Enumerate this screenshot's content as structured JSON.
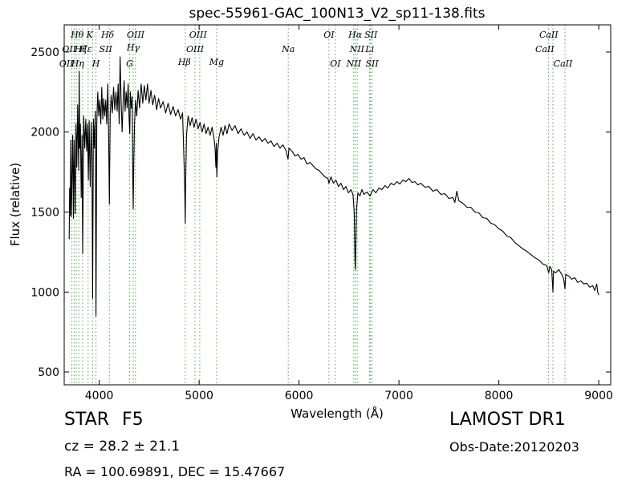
{
  "chart_data": {
    "type": "line",
    "title": "spec-55961-GAC_100N13_V2_sp11-138.fits",
    "xlabel": "Wavelength (Å)",
    "ylabel": "Flux (relative)",
    "xlim": [
      3650,
      9120
    ],
    "ylim": [
      420,
      2670
    ],
    "xticks": [
      4000,
      5000,
      6000,
      7000,
      8000,
      9000
    ],
    "yticks": [
      500,
      1000,
      1500,
      2000,
      2500
    ],
    "grid": false,
    "series": [
      {
        "color": "#000000",
        "points": [
          [
            3700,
            1330
          ],
          [
            3705,
            1650
          ],
          [
            3710,
            1480
          ],
          [
            3716,
            1950
          ],
          [
            3722,
            1470
          ],
          [
            3728,
            1700
          ],
          [
            3735,
            1980
          ],
          [
            3742,
            1460
          ],
          [
            3750,
            1950
          ],
          [
            3760,
            1490
          ],
          [
            3768,
            2050
          ],
          [
            3776,
            1780
          ],
          [
            3785,
            2170
          ],
          [
            3795,
            1760
          ],
          [
            3800,
            2380
          ],
          [
            3806,
            1900
          ],
          [
            3812,
            2050
          ],
          [
            3820,
            1590
          ],
          [
            3828,
            1980
          ],
          [
            3835,
            1240
          ],
          [
            3845,
            2100
          ],
          [
            3856,
            1900
          ],
          [
            3866,
            2080
          ],
          [
            3875,
            1880
          ],
          [
            3884,
            2050
          ],
          [
            3892,
            1700
          ],
          [
            3900,
            2070
          ],
          [
            3910,
            1660
          ],
          [
            3920,
            2060
          ],
          [
            3928,
            1850
          ],
          [
            3934,
            960
          ],
          [
            3942,
            2080
          ],
          [
            3952,
            1900
          ],
          [
            3961,
            2130
          ],
          [
            3968,
            850
          ],
          [
            3976,
            2050
          ],
          [
            3986,
            2250
          ],
          [
            3996,
            2100
          ],
          [
            4006,
            2200
          ],
          [
            4016,
            2050
          ],
          [
            4026,
            2280
          ],
          [
            4036,
            2080
          ],
          [
            4046,
            2210
          ],
          [
            4056,
            2100
          ],
          [
            4066,
            2200
          ],
          [
            4076,
            2050
          ],
          [
            4086,
            2300
          ],
          [
            4094,
            2000
          ],
          [
            4102,
            1550
          ],
          [
            4110,
            2100
          ],
          [
            4120,
            2230
          ],
          [
            4132,
            2120
          ],
          [
            4144,
            2280
          ],
          [
            4156,
            2140
          ],
          [
            4168,
            2250
          ],
          [
            4180,
            2130
          ],
          [
            4190,
            2300
          ],
          [
            4200,
            2050
          ],
          [
            4210,
            2470
          ],
          [
            4220,
            2180
          ],
          [
            4230,
            2000
          ],
          [
            4240,
            2200
          ],
          [
            4250,
            2320
          ],
          [
            4260,
            2130
          ],
          [
            4270,
            2250
          ],
          [
            4280,
            2150
          ],
          [
            4290,
            2300
          ],
          [
            4300,
            2080
          ],
          [
            4306,
            1990
          ],
          [
            4312,
            2250
          ],
          [
            4322,
            2150
          ],
          [
            4330,
            2220
          ],
          [
            4336,
            1750
          ],
          [
            4341,
            1520
          ],
          [
            4346,
            1800
          ],
          [
            4354,
            2050
          ],
          [
            4364,
            2200
          ],
          [
            4376,
            2100
          ],
          [
            4390,
            2260
          ],
          [
            4404,
            2150
          ],
          [
            4420,
            2300
          ],
          [
            4436,
            2180
          ],
          [
            4452,
            2290
          ],
          [
            4468,
            2200
          ],
          [
            4484,
            2300
          ],
          [
            4500,
            2180
          ],
          [
            4518,
            2260
          ],
          [
            4536,
            2170
          ],
          [
            4555,
            2230
          ],
          [
            4575,
            2140
          ],
          [
            4595,
            2210
          ],
          [
            4615,
            2150
          ],
          [
            4640,
            2190
          ],
          [
            4665,
            2120
          ],
          [
            4690,
            2180
          ],
          [
            4715,
            2110
          ],
          [
            4740,
            2160
          ],
          [
            4765,
            2100
          ],
          [
            4790,
            2140
          ],
          [
            4815,
            2080
          ],
          [
            4835,
            2120
          ],
          [
            4850,
            1800
          ],
          [
            4857,
            1620
          ],
          [
            4861,
            1430
          ],
          [
            4866,
            1700
          ],
          [
            4874,
            1980
          ],
          [
            4890,
            2100
          ],
          [
            4910,
            2040
          ],
          [
            4930,
            2090
          ],
          [
            4950,
            2030
          ],
          [
            4970,
            2080
          ],
          [
            4990,
            2020
          ],
          [
            5010,
            2060
          ],
          [
            5030,
            2000
          ],
          [
            5050,
            2050
          ],
          [
            5070,
            1990
          ],
          [
            5090,
            2030
          ],
          [
            5110,
            1980
          ],
          [
            5130,
            2030
          ],
          [
            5150,
            1960
          ],
          [
            5160,
            1900
          ],
          [
            5168,
            1780
          ],
          [
            5173,
            1930
          ],
          [
            5178,
            1720
          ],
          [
            5186,
            1880
          ],
          [
            5200,
            1970
          ],
          [
            5220,
            2030
          ],
          [
            5240,
            1980
          ],
          [
            5260,
            2040
          ],
          [
            5280,
            1990
          ],
          [
            5300,
            2050
          ],
          [
            5330,
            2010
          ],
          [
            5360,
            2040
          ],
          [
            5390,
            1990
          ],
          [
            5420,
            2020
          ],
          [
            5450,
            1980
          ],
          [
            5480,
            2000
          ],
          [
            5510,
            1960
          ],
          [
            5540,
            1990
          ],
          [
            5570,
            1950
          ],
          [
            5600,
            1970
          ],
          [
            5630,
            1940
          ],
          [
            5660,
            1960
          ],
          [
            5690,
            1930
          ],
          [
            5720,
            1945
          ],
          [
            5750,
            1910
          ],
          [
            5780,
            1930
          ],
          [
            5810,
            1900
          ],
          [
            5840,
            1920
          ],
          [
            5870,
            1885
          ],
          [
            5890,
            1830
          ],
          [
            5900,
            1900
          ],
          [
            5930,
            1880
          ],
          [
            5960,
            1850
          ],
          [
            5990,
            1860
          ],
          [
            6020,
            1830
          ],
          [
            6050,
            1840
          ],
          [
            6080,
            1800
          ],
          [
            6110,
            1810
          ],
          [
            6140,
            1790
          ],
          [
            6170,
            1770
          ],
          [
            6200,
            1760
          ],
          [
            6230,
            1740
          ],
          [
            6260,
            1720
          ],
          [
            6290,
            1710
          ],
          [
            6300,
            1680
          ],
          [
            6320,
            1720
          ],
          [
            6345,
            1680
          ],
          [
            6370,
            1700
          ],
          [
            6395,
            1660
          ],
          [
            6420,
            1680
          ],
          [
            6445,
            1640
          ],
          [
            6470,
            1660
          ],
          [
            6495,
            1620
          ],
          [
            6520,
            1640
          ],
          [
            6540,
            1610
          ],
          [
            6553,
            1500
          ],
          [
            6560,
            1200
          ],
          [
            6564,
            1140
          ],
          [
            6568,
            1250
          ],
          [
            6576,
            1520
          ],
          [
            6590,
            1620
          ],
          [
            6610,
            1600
          ],
          [
            6630,
            1640
          ],
          [
            6650,
            1610
          ],
          [
            6680,
            1625
          ],
          [
            6710,
            1600
          ],
          [
            6740,
            1640
          ],
          [
            6770,
            1620
          ],
          [
            6800,
            1650
          ],
          [
            6830,
            1640
          ],
          [
            6860,
            1665
          ],
          [
            6890,
            1650
          ],
          [
            6920,
            1680
          ],
          [
            6950,
            1670
          ],
          [
            6980,
            1690
          ],
          [
            7010,
            1675
          ],
          [
            7040,
            1700
          ],
          [
            7070,
            1690
          ],
          [
            7100,
            1710
          ],
          [
            7130,
            1685
          ],
          [
            7160,
            1690
          ],
          [
            7190,
            1670
          ],
          [
            7220,
            1680
          ],
          [
            7260,
            1655
          ],
          [
            7300,
            1660
          ],
          [
            7340,
            1630
          ],
          [
            7380,
            1640
          ],
          [
            7420,
            1610
          ],
          [
            7460,
            1615
          ],
          [
            7500,
            1585
          ],
          [
            7540,
            1590
          ],
          [
            7560,
            1560
          ],
          [
            7580,
            1630
          ],
          [
            7600,
            1570
          ],
          [
            7640,
            1555
          ],
          [
            7680,
            1530
          ],
          [
            7720,
            1530
          ],
          [
            7760,
            1500
          ],
          [
            7800,
            1495
          ],
          [
            7840,
            1465
          ],
          [
            7880,
            1460
          ],
          [
            7920,
            1430
          ],
          [
            7960,
            1420
          ],
          [
            8000,
            1395
          ],
          [
            8040,
            1380
          ],
          [
            8080,
            1350
          ],
          [
            8120,
            1340
          ],
          [
            8160,
            1310
          ],
          [
            8200,
            1290
          ],
          [
            8240,
            1270
          ],
          [
            8280,
            1255
          ],
          [
            8320,
            1235
          ],
          [
            8360,
            1215
          ],
          [
            8400,
            1200
          ],
          [
            8440,
            1175
          ],
          [
            8480,
            1165
          ],
          [
            8500,
            1120
          ],
          [
            8510,
            1160
          ],
          [
            8530,
            1140
          ],
          [
            8542,
            1000
          ],
          [
            8548,
            1130
          ],
          [
            8570,
            1120
          ],
          [
            8600,
            1140
          ],
          [
            8630,
            1110
          ],
          [
            8650,
            1080
          ],
          [
            8662,
            1020
          ],
          [
            8670,
            1110
          ],
          [
            8700,
            1100
          ],
          [
            8730,
            1080
          ],
          [
            8760,
            1090
          ],
          [
            8790,
            1060
          ],
          [
            8820,
            1070
          ],
          [
            8850,
            1050
          ],
          [
            8880,
            1055
          ],
          [
            8910,
            1030
          ],
          [
            8940,
            1040
          ],
          [
            8960,
            1010
          ],
          [
            8980,
            1050
          ],
          [
            8990,
            1000
          ],
          [
            9000,
            980
          ]
        ]
      }
    ],
    "lines": {
      "color": "#5aa55a",
      "wavelengths": [
        3727,
        3750,
        3771,
        3798,
        3835,
        3889,
        3934,
        3968,
        4102,
        4305,
        4341,
        4363,
        4861,
        4959,
        5007,
        5175,
        5893,
        6300,
        6364,
        6548,
        6563,
        6583,
        6707,
        6716,
        6731,
        8498,
        8542,
        8662
      ]
    },
    "labels": [
      {
        "text": "Hθ",
        "wl": 3780,
        "flux": 2590
      },
      {
        "text": "K",
        "wl": 3905,
        "flux": 2590
      },
      {
        "text": "Hδ",
        "wl": 4085,
        "flux": 2590
      },
      {
        "text": "OIII",
        "wl": 4365,
        "flux": 2590
      },
      {
        "text": "OIII",
        "wl": 4990,
        "flux": 2590
      },
      {
        "text": "OI",
        "wl": 6300,
        "flux": 2590
      },
      {
        "text": "Hα",
        "wl": 6563,
        "flux": 2590
      },
      {
        "text": "SII",
        "wl": 6720,
        "flux": 2590
      },
      {
        "text": "CaII",
        "wl": 8500,
        "flux": 2590
      },
      {
        "text": "Hγ",
        "wl": 4341,
        "flux": 2510
      },
      {
        "text": "OII",
        "wl": 3700,
        "flux": 2500
      },
      {
        "text": "Hζ",
        "wl": 3815,
        "flux": 2500
      },
      {
        "text": "Hε",
        "wl": 3865,
        "flux": 2500
      },
      {
        "text": "SII",
        "wl": 4066,
        "flux": 2500
      },
      {
        "text": "Na",
        "wl": 5893,
        "flux": 2500
      },
      {
        "text": "NII",
        "wl": 6580,
        "flux": 2500
      },
      {
        "text": "Li",
        "wl": 6708,
        "flux": 2500
      },
      {
        "text": "CaII",
        "wl": 8460,
        "flux": 2500
      },
      {
        "text": "OII",
        "wl": 3672,
        "flux": 2410
      },
      {
        "text": "Hη",
        "wl": 3785,
        "flux": 2410
      },
      {
        "text": "H",
        "wl": 3968,
        "flux": 2410
      },
      {
        "text": "G",
        "wl": 4305,
        "flux": 2410
      },
      {
        "text": "Hβ",
        "wl": 4853,
        "flux": 2420
      },
      {
        "text": "OIII",
        "wl": 4959,
        "flux": 2500
      },
      {
        "text": "Mg",
        "wl": 5175,
        "flux": 2420
      },
      {
        "text": "OI",
        "wl": 6364,
        "flux": 2410
      },
      {
        "text": "NII",
        "wl": 6548,
        "flux": 2410
      },
      {
        "text": "SII",
        "wl": 6731,
        "flux": 2410
      },
      {
        "text": "CaII",
        "wl": 8642,
        "flux": 2410
      }
    ]
  },
  "info": {
    "object_class": "STAR",
    "subclass": "F5",
    "survey": "LAMOST DR1",
    "redshift": "cz = 28.2  ± 21.1",
    "obs_date": "Obs-Date:20120203",
    "coords": "RA = 100.69891, DEC = 15.47667"
  }
}
